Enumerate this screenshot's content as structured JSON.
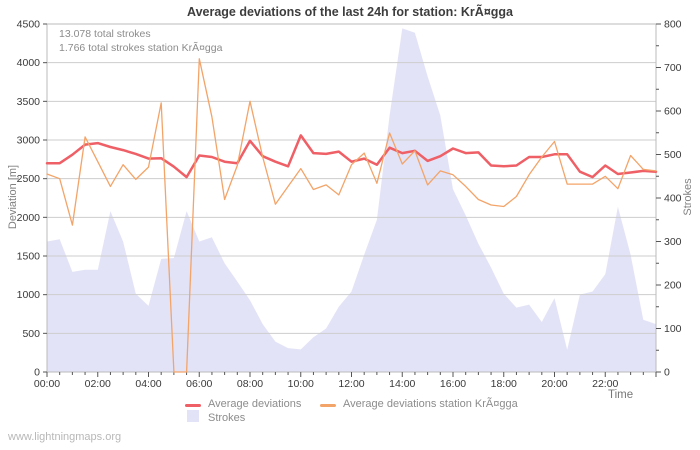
{
  "title": "Average deviations of the last 24h for station: KrÃ¤gga",
  "annotations": {
    "total_strokes": "13.078 total strokes",
    "station_strokes": "1.766 total strokes station KrÃ¤gga"
  },
  "watermark": "www.lightningmaps.org",
  "colors": {
    "avg_deviation_line": "#ee5f66",
    "station_deviation_line": "#f3a469",
    "strokes_area": "#e3e3f7",
    "gridline": "#cdcdcd",
    "plot_border": "#bbbbbb",
    "tick": "#555555",
    "tick_text": "#3a3a3a"
  },
  "chart_data": {
    "type": "line",
    "x_unit": "hours",
    "x_range": [
      0,
      24
    ],
    "x_step_hours": 0.5,
    "x_axis_label": "Time",
    "x_tick_labels": [
      "00:00",
      "02:00",
      "04:00",
      "06:00",
      "08:00",
      "10:00",
      "12:00",
      "14:00",
      "16:00",
      "18:00",
      "20:00",
      "22:00"
    ],
    "left_axis": {
      "label": "Deviation [m]",
      "range": [
        0,
        4500
      ],
      "tick_step": 500,
      "tick_labels": [
        "0",
        "500",
        "1000",
        "1500",
        "2000",
        "2500",
        "3000",
        "3500",
        "4000",
        "4500"
      ]
    },
    "right_axis": {
      "label": "Strokes",
      "range": [
        0,
        800
      ],
      "tick_step": 100,
      "minor_tick_step": 50,
      "tick_labels": [
        "0",
        "100",
        "200",
        "300",
        "400",
        "500",
        "600",
        "700",
        "800"
      ]
    },
    "grid": "horizontal",
    "legend_position": "bottom",
    "series": [
      {
        "name": "Average deviations",
        "type": "line",
        "axis": "left",
        "color": "#ee5f66",
        "width": 2.5,
        "values": [
          2700,
          2700,
          2810,
          2940,
          2960,
          2910,
          2870,
          2820,
          2760,
          2765,
          2655,
          2520,
          2800,
          2780,
          2720,
          2700,
          2990,
          2790,
          2720,
          2660,
          3060,
          2830,
          2820,
          2850,
          2720,
          2760,
          2680,
          2900,
          2830,
          2860,
          2730,
          2790,
          2890,
          2830,
          2840,
          2670,
          2660,
          2670,
          2780,
          2780,
          2815,
          2815,
          2590,
          2520,
          2670,
          2560,
          2580,
          2600,
          2590
        ]
      },
      {
        "name": "Average deviations station KrÃ¤gga",
        "type": "line",
        "axis": "left",
        "color": "#f3a469",
        "width": 1.3,
        "values": [
          2560,
          2500,
          1900,
          3040,
          2720,
          2400,
          2680,
          2490,
          2650,
          3480,
          0,
          0,
          4050,
          3300,
          2230,
          2670,
          3500,
          2780,
          2170,
          2400,
          2630,
          2360,
          2420,
          2290,
          2680,
          2830,
          2440,
          3090,
          2690,
          2860,
          2420,
          2600,
          2550,
          2400,
          2230,
          2160,
          2140,
          2270,
          2550,
          2780,
          2980,
          2430,
          2430,
          2430,
          2530,
          2370,
          2800,
          2620,
          2600
        ]
      },
      {
        "name": "Strokes",
        "type": "area",
        "axis": "right",
        "color": "#e3e3f7",
        "values": [
          300,
          305,
          230,
          235,
          235,
          370,
          300,
          180,
          152,
          260,
          262,
          370,
          300,
          310,
          250,
          208,
          165,
          110,
          70,
          55,
          52,
          80,
          100,
          150,
          185,
          270,
          350,
          590,
          790,
          780,
          680,
          590,
          420,
          360,
          295,
          240,
          180,
          148,
          155,
          115,
          170,
          51,
          178,
          185,
          225,
          380,
          270,
          120,
          110
        ]
      }
    ]
  }
}
